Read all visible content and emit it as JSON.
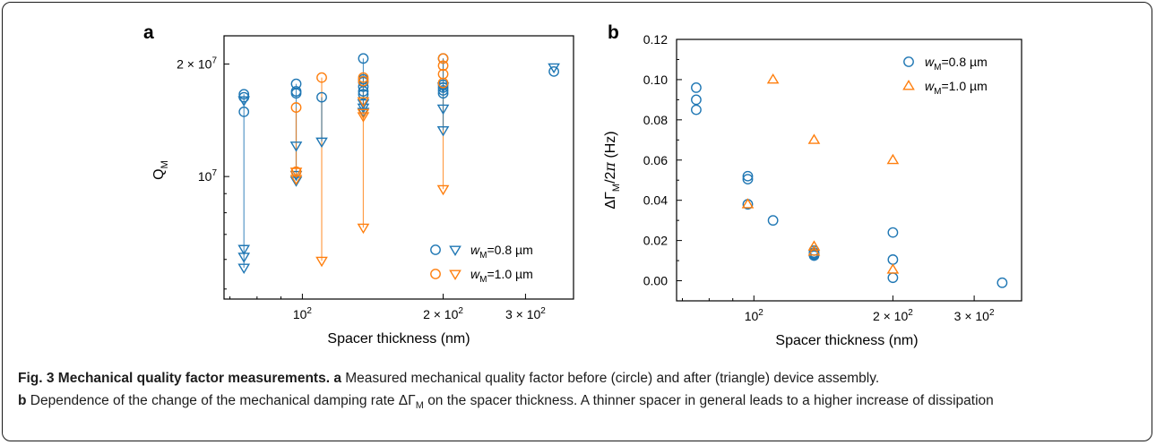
{
  "chart_data": [
    {
      "panel": "a",
      "type": "scatter",
      "xlabel": "Spacer thickness (nm)",
      "ylabel": "Q_M",
      "xscale": "log",
      "yscale": "log",
      "xlim": [
        68,
        380
      ],
      "ylim": [
        4700000,
        23800000
      ],
      "xticks": [
        {
          "value": 100,
          "base": "10",
          "exp": "2"
        },
        {
          "value": 200,
          "coef": "2 × 10",
          "exp": "2"
        },
        {
          "value": 300,
          "coef": "3 × 10",
          "exp": "2"
        }
      ],
      "yticks": [
        {
          "value": 10000000,
          "base": "10",
          "exp": "7"
        },
        {
          "value": 20000000,
          "coef": "2 × 10",
          "exp": "7"
        }
      ],
      "legend": {
        "position": "bottom-right",
        "entries": [
          {
            "marker": "circle",
            "color": "#1f77b4"
          },
          {
            "marker": "triangle-down",
            "color": "#1f77b4"
          },
          {
            "marker": "circle",
            "color": "#ff7f0e"
          },
          {
            "marker": "triangle-down",
            "color": "#ff7f0e"
          }
        ],
        "labels": [
          {
            "var": "w",
            "sub": "M",
            "text": "=0.8 µm"
          },
          {
            "var": "w",
            "sub": "M",
            "text": "=1.0 µm"
          }
        ]
      },
      "series": [
        {
          "name": "before assembly, w_M=0.8 µm",
          "marker": "circle",
          "color": "#1f77b4",
          "points": [
            [
              75,
              16600000
            ],
            [
              75,
              16300000
            ],
            [
              75,
              14900000
            ],
            [
              97,
              17700000
            ],
            [
              97,
              16900000
            ],
            [
              97,
              16700000
            ],
            [
              110,
              16300000
            ],
            [
              135,
              20700000
            ],
            [
              135,
              18200000
            ],
            [
              135,
              17900000
            ],
            [
              135,
              17400000
            ],
            [
              135,
              16900000
            ],
            [
              135,
              16600000
            ],
            [
              200,
              20700000
            ],
            [
              200,
              17600000
            ],
            [
              200,
              17300000
            ],
            [
              200,
              17000000
            ],
            [
              200,
              16700000
            ],
            [
              345,
              19100000
            ]
          ]
        },
        {
          "name": "after assembly, w_M=0.8 µm",
          "marker": "triangle-down",
          "color": "#1f77b4",
          "points": [
            [
              75,
              16000000
            ],
            [
              75,
              6400000
            ],
            [
              75,
              6100000
            ],
            [
              75,
              5700000
            ],
            [
              97,
              12100000
            ],
            [
              97,
              10100000
            ],
            [
              97,
              9750000
            ],
            [
              110,
              12400000
            ],
            [
              135,
              15700000
            ],
            [
              135,
              15300000
            ],
            [
              135,
              14900000
            ],
            [
              200,
              17400000
            ],
            [
              200,
              15200000
            ],
            [
              200,
              13300000
            ],
            [
              345,
              19600000
            ]
          ]
        },
        {
          "name": "before assembly, w_M=1.0 µm",
          "marker": "circle",
          "color": "#ff7f0e",
          "points": [
            [
              97,
              15300000
            ],
            [
              97,
              10300000
            ],
            [
              110,
              18400000
            ],
            [
              135,
              18400000
            ],
            [
              135,
              18000000
            ],
            [
              200,
              20700000
            ],
            [
              200,
              19800000
            ],
            [
              200,
              18800000
            ],
            [
              200,
              17800000
            ]
          ]
        },
        {
          "name": "after assembly, w_M=1.0 µm",
          "marker": "triangle-down",
          "color": "#ff7f0e",
          "points": [
            [
              97,
              10300000
            ],
            [
              97,
              9850000
            ],
            [
              110,
              5950000
            ],
            [
              135,
              15900000
            ],
            [
              135,
              14800000
            ],
            [
              135,
              14500000
            ],
            [
              135,
              7300000
            ],
            [
              200,
              9250000
            ]
          ]
        }
      ],
      "lines": [
        {
          "x": 75,
          "from": 16600000,
          "to": 5700000,
          "color": "#1f77b4"
        },
        {
          "x": 97,
          "from": 17700000,
          "to": 9750000,
          "color": "#1f77b4"
        },
        {
          "x": 97,
          "from": 15300000,
          "to": 9850000,
          "color": "#ff7f0e"
        },
        {
          "x": 110,
          "from": 18400000,
          "to": 5950000,
          "color": "#ff7f0e"
        },
        {
          "x": 110,
          "from": 16300000,
          "to": 12400000,
          "color": "#1f77b4"
        },
        {
          "x": 135,
          "from": 18400000,
          "to": 7300000,
          "color": "#ff7f0e"
        },
        {
          "x": 135,
          "from": 20700000,
          "to": 14900000,
          "color": "#1f77b4"
        },
        {
          "x": 200,
          "from": 20700000,
          "to": 9250000,
          "color": "#ff7f0e"
        },
        {
          "x": 200,
          "from": 20700000,
          "to": 13300000,
          "color": "#1f77b4"
        }
      ]
    },
    {
      "panel": "b",
      "type": "scatter",
      "xlabel": "Spacer thickness (nm)",
      "ylabel": "ΔΓ_M/2π (Hz)",
      "xscale": "log",
      "xlim": [
        68,
        380
      ],
      "ylim": [
        -0.01,
        0.12
      ],
      "yticks": [
        "0.00",
        "0.02",
        "0.04",
        "0.06",
        "0.08",
        "0.10",
        "0.12"
      ],
      "xticks": [
        {
          "value": 100,
          "base": "10",
          "exp": "2"
        },
        {
          "value": 200,
          "coef": "2 × 10",
          "exp": "2"
        },
        {
          "value": 300,
          "coef": "3 × 10",
          "exp": "2"
        }
      ],
      "legend": {
        "position": "top-right",
        "entries": [
          {
            "marker": "circle",
            "color": "#1f77b4",
            "var": "w",
            "sub": "M",
            "text": "=0.8 µm"
          },
          {
            "marker": "triangle-up",
            "color": "#ff7f0e",
            "var": "w",
            "sub": "M",
            "text": "=1.0 µm"
          }
        ]
      },
      "series": [
        {
          "name": "w_M=0.8 µm",
          "marker": "circle",
          "color": "#1f77b4",
          "points": [
            [
              75,
              0.096
            ],
            [
              75,
              0.09
            ],
            [
              75,
              0.085
            ],
            [
              97,
              0.052
            ],
            [
              97,
              0.0505
            ],
            [
              97,
              0.038
            ],
            [
              110,
              0.03
            ],
            [
              135,
              0.015
            ],
            [
              135,
              0.014
            ],
            [
              135,
              0.0135
            ],
            [
              135,
              0.013
            ],
            [
              135,
              0.0125
            ],
            [
              200,
              0.024
            ],
            [
              200,
              0.0105
            ],
            [
              200,
              0.0015
            ],
            [
              345,
              -0.001
            ]
          ]
        },
        {
          "name": "w_M=1.0 µm",
          "marker": "triangle-up",
          "color": "#ff7f0e",
          "points": [
            [
              97,
              0.038
            ],
            [
              110,
              0.1
            ],
            [
              135,
              0.07
            ],
            [
              135,
              0.017
            ],
            [
              135,
              0.0145
            ],
            [
              200,
              0.06
            ],
            [
              200,
              0.0055
            ]
          ]
        }
      ]
    }
  ],
  "panel_a_label": "a",
  "panel_b_label": "b",
  "caption": {
    "fig_label": "Fig. 3",
    "title": "Mechanical quality factor measurements.",
    "part_a_label": "a",
    "part_a_text": "Measured mechanical quality factor before (circle) and after (triangle) device assembly.",
    "part_b_label": "b",
    "part_b_text_1": "Dependence of the change of the mechanical damping rate ΔΓ",
    "part_b_sub": "M",
    "part_b_text_2": "on the spacer thickness. A thinner spacer in general leads to a higher increase of dissipation"
  }
}
